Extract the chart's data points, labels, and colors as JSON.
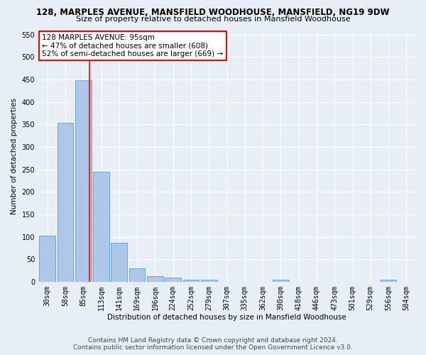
{
  "title": "128, MARPLES AVENUE, MANSFIELD WOODHOUSE, MANSFIELD, NG19 9DW",
  "subtitle": "Size of property relative to detached houses in Mansfield Woodhouse",
  "xlabel": "Distribution of detached houses by size in Mansfield Woodhouse",
  "ylabel": "Number of detached properties",
  "footer_line1": "Contains HM Land Registry data © Crown copyright and database right 2024.",
  "footer_line2": "Contains public sector information licensed under the Open Government Licence v3.0.",
  "bin_labels": [
    "30sqm",
    "58sqm",
    "85sqm",
    "113sqm",
    "141sqm",
    "169sqm",
    "196sqm",
    "224sqm",
    "252sqm",
    "279sqm",
    "307sqm",
    "335sqm",
    "362sqm",
    "390sqm",
    "418sqm",
    "446sqm",
    "473sqm",
    "501sqm",
    "529sqm",
    "556sqm",
    "584sqm"
  ],
  "bar_values": [
    103,
    353,
    448,
    245,
    87,
    30,
    13,
    9,
    5,
    5,
    0,
    0,
    0,
    5,
    0,
    0,
    0,
    0,
    0,
    5,
    0
  ],
  "bar_color": "#aec6e8",
  "bar_edgecolor": "#5b9bd5",
  "property_line_x": 2.333,
  "property_sqm": 95,
  "annotation_text": "128 MARPLES AVENUE: 95sqm\n← 47% of detached houses are smaller (608)\n52% of semi-detached houses are larger (669) →",
  "annotation_box_color": "white",
  "annotation_box_edgecolor": "red",
  "property_line_color": "red",
  "ylim": [
    0,
    560
  ],
  "yticks": [
    0,
    50,
    100,
    150,
    200,
    250,
    300,
    350,
    400,
    450,
    500,
    550
  ],
  "background_color": "#e8eef5",
  "plot_background": "#e8eef5",
  "grid_color": "white",
  "title_fontsize": 8.5,
  "subtitle_fontsize": 8,
  "axis_label_fontsize": 7.5,
  "tick_fontsize": 7,
  "footer_fontsize": 6.5,
  "annotation_fontsize": 7.5
}
